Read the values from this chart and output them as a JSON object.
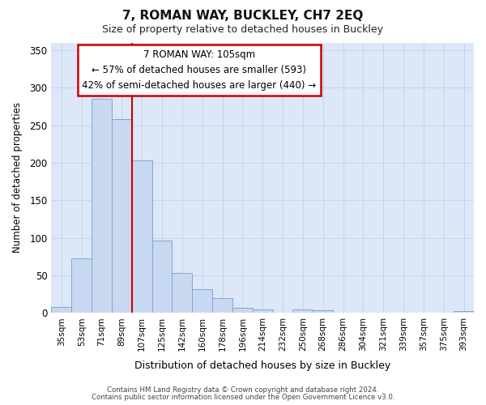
{
  "title": "7, ROMAN WAY, BUCKLEY, CH7 2EQ",
  "subtitle": "Size of property relative to detached houses in Buckley",
  "xlabel": "Distribution of detached houses by size in Buckley",
  "ylabel": "Number of detached properties",
  "categories": [
    "35sqm",
    "53sqm",
    "71sqm",
    "89sqm",
    "107sqm",
    "125sqm",
    "142sqm",
    "160sqm",
    "178sqm",
    "196sqm",
    "214sqm",
    "232sqm",
    "250sqm",
    "268sqm",
    "286sqm",
    "304sqm",
    "321sqm",
    "339sqm",
    "357sqm",
    "375sqm",
    "393sqm"
  ],
  "values": [
    8,
    73,
    285,
    258,
    203,
    96,
    53,
    32,
    20,
    7,
    5,
    0,
    5,
    4,
    0,
    0,
    0,
    0,
    0,
    0,
    3
  ],
  "bar_color": "#c8d8f0",
  "bar_edge_color": "#7fa8d0",
  "vline_color": "#cc0000",
  "vline_pos": 3.5,
  "annotation_text": "7 ROMAN WAY: 105sqm\n← 57% of detached houses are smaller (593)\n42% of semi-detached houses are larger (440) →",
  "annotation_box_color": "#ffffff",
  "annotation_box_edge": "#cc0000",
  "grid_color": "#c8d4e8",
  "background_color": "#ffffff",
  "plot_bg_color": "#dce8f8",
  "footer_line1": "Contains HM Land Registry data © Crown copyright and database right 2024.",
  "footer_line2": "Contains public sector information licensed under the Open Government Licence v3.0.",
  "ylim": [
    0,
    360
  ],
  "yticks": [
    0,
    50,
    100,
    150,
    200,
    250,
    300,
    350
  ]
}
